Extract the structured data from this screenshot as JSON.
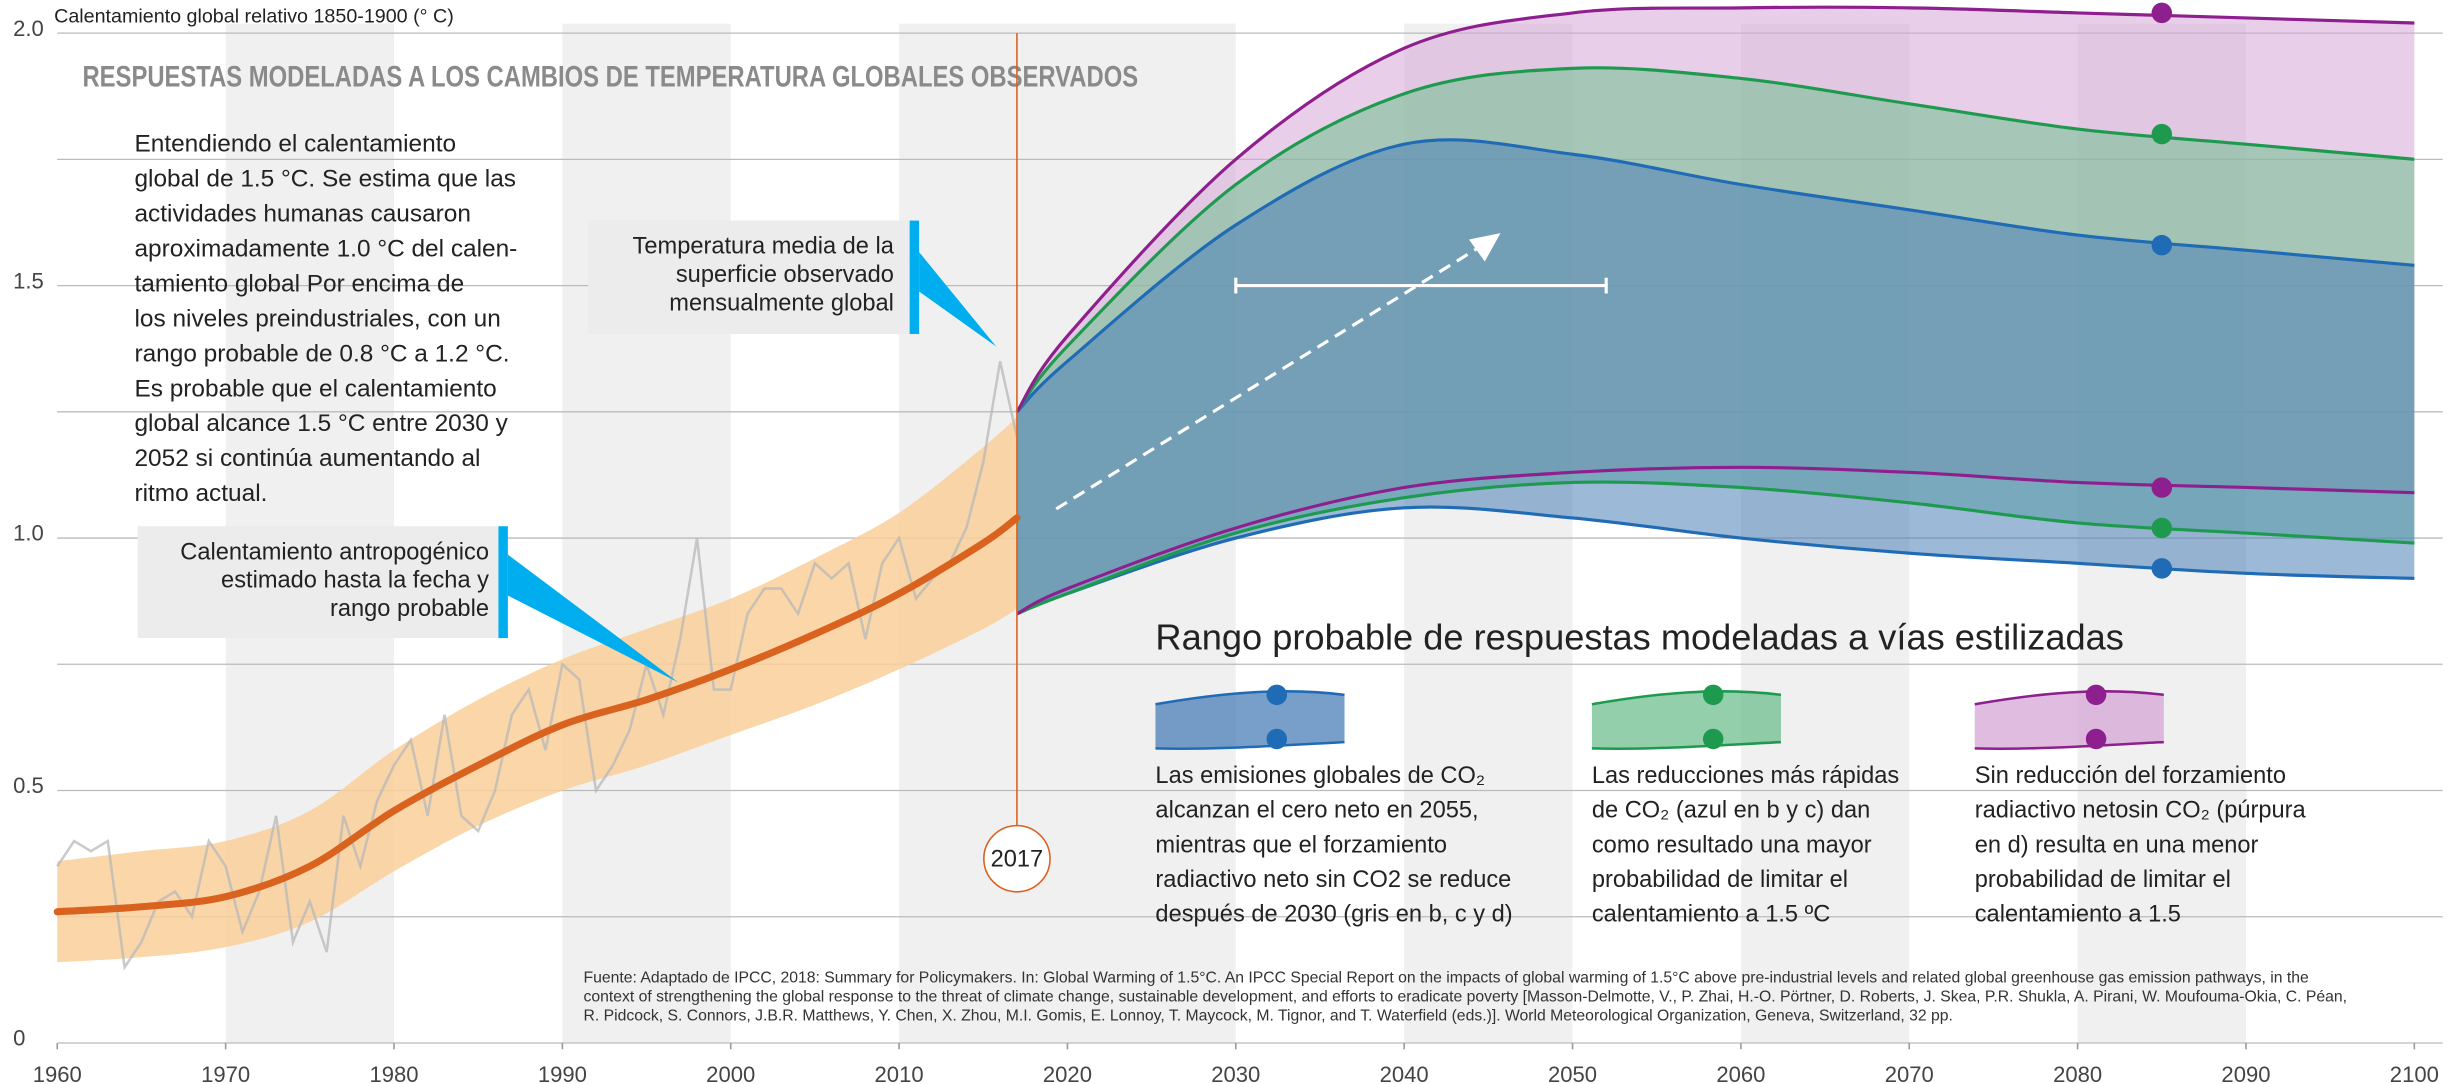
{
  "chart_data": {
    "type": "line",
    "title": "RESPUESTAS MODELADAS A LOS CAMBIOS DE TEMPERATURA GLOBALES OBSERVADOS",
    "y_label": "Calentamiento global relativo 1850-1900 (° C)",
    "xlim": [
      1960,
      2100
    ],
    "xticks": [
      1960,
      1970,
      1980,
      1990,
      2000,
      2010,
      2020,
      2030,
      2040,
      2050,
      2060,
      2070,
      2080,
      2090,
      2100
    ],
    "ylim": [
      0,
      2
    ],
    "yticks": [
      0,
      0.5,
      {
        "value": 1,
        "label": "1.0"
      },
      1.5,
      {
        "value": 2,
        "label": "2.0"
      }
    ],
    "minor_yticks": [
      0.25,
      0.75,
      1.25,
      1.75
    ],
    "grid": true,
    "series": [
      {
        "color": "#b8b8b8",
        "x": [
          1960,
          1961,
          1962,
          1963,
          1964,
          1965,
          1966,
          1967,
          1968,
          1969,
          1970,
          1971,
          1972,
          1973,
          1974,
          1975,
          1976,
          1977,
          1978,
          1979,
          1980,
          1981,
          1982,
          1983,
          1984,
          1985,
          1986,
          1987,
          1988,
          1989,
          1990,
          1991,
          1992,
          1993,
          1994,
          1995,
          1996,
          1997,
          1998,
          1999,
          2000,
          2001,
          2002,
          2003,
          2004,
          2005,
          2006,
          2007,
          2008,
          2009,
          2010,
          2011,
          2012,
          2013,
          2014,
          2015,
          2016,
          2017
        ],
        "values": [
          0.35,
          0.4,
          0.38,
          0.4,
          0.15,
          0.2,
          0.28,
          0.3,
          0.25,
          0.4,
          0.35,
          0.22,
          0.3,
          0.45,
          0.2,
          0.28,
          0.18,
          0.45,
          0.35,
          0.48,
          0.55,
          0.6,
          0.45,
          0.65,
          0.45,
          0.42,
          0.5,
          0.65,
          0.7,
          0.58,
          0.75,
          0.72,
          0.5,
          0.55,
          0.62,
          0.75,
          0.65,
          0.8,
          1.0,
          0.7,
          0.7,
          0.85,
          0.9,
          0.9,
          0.85,
          0.95,
          0.92,
          0.95,
          0.8,
          0.95,
          1.0,
          0.88,
          0.92,
          0.95,
          1.02,
          1.15,
          1.35,
          1.2
        ]
      },
      {
        "color": "#d9621f",
        "band_color": "#f9cf9a",
        "x": [
          1960,
          1965,
          1970,
          1975,
          1980,
          1985,
          1990,
          1995,
          2000,
          2005,
          2010,
          2015,
          2017
        ],
        "values": [
          0.26,
          0.27,
          0.29,
          0.35,
          0.46,
          0.55,
          0.63,
          0.68,
          0.74,
          0.81,
          0.89,
          0.99,
          1.04
        ],
        "lower": [
          0.16,
          0.17,
          0.19,
          0.24,
          0.34,
          0.43,
          0.5,
          0.55,
          0.61,
          0.67,
          0.74,
          0.82,
          0.86
        ],
        "upper": [
          0.36,
          0.38,
          0.4,
          0.46,
          0.58,
          0.68,
          0.76,
          0.82,
          0.88,
          0.96,
          1.05,
          1.18,
          1.24
        ]
      }
    ],
    "scenarios": [
      {
        "color": "#1f6bb5",
        "fill": "#4a7fb8",
        "x": [
          2017,
          2020,
          2030,
          2040,
          2050,
          2060,
          2070,
          2080,
          2090,
          2100
        ],
        "upper": [
          1.25,
          1.35,
          1.62,
          1.78,
          1.76,
          1.7,
          1.65,
          1.6,
          1.57,
          1.54
        ],
        "lower": [
          0.85,
          0.89,
          1.0,
          1.06,
          1.04,
          1.0,
          0.97,
          0.95,
          0.93,
          0.92
        ],
        "marker_x": 2085,
        "marker_values": [
          1.58,
          0.94
        ]
      },
      {
        "color": "#1e9a4f",
        "fill": "#6fbf8e",
        "x": [
          2017,
          2020,
          2030,
          2040,
          2050,
          2060,
          2070,
          2080,
          2090,
          2100
        ],
        "upper": [
          1.25,
          1.38,
          1.7,
          1.88,
          1.93,
          1.91,
          1.86,
          1.81,
          1.78,
          1.75
        ],
        "lower": [
          0.85,
          0.89,
          1.01,
          1.08,
          1.11,
          1.1,
          1.07,
          1.03,
          1.01,
          0.99
        ],
        "marker_x": 2085,
        "marker_values": [
          1.8,
          1.02
        ]
      },
      {
        "color": "#8e1f8e",
        "fill": "#d7a6d7",
        "x": [
          2017,
          2020,
          2030,
          2040,
          2050,
          2060,
          2070,
          2080,
          2090,
          2100
        ],
        "upper": [
          1.25,
          1.4,
          1.75,
          1.97,
          2.04,
          2.05,
          2.05,
          2.04,
          2.03,
          2.02
        ],
        "lower": [
          0.85,
          0.9,
          1.02,
          1.1,
          1.13,
          1.14,
          1.13,
          1.11,
          1.1,
          1.09
        ],
        "marker_x": 2085,
        "marker_values": [
          2.04,
          1.1
        ]
      }
    ],
    "annotations": {
      "text": [
        "Entendiendo el calentamiento",
        "global de 1.5 °C. Se estima que las",
        "actividades humanas causaron",
        "aproximadamente 1.0 °C del calen-",
        "tamiento global  Por encima de",
        "los niveles preindustriales, con un",
        "rango probable de 0.8 °C a 1.2 °C.",
        "Es probable que el calentamiento",
        "global alcance 1.5 °C entre 2030 y",
        "2052 si continúa aumentando al",
        "ritmo actual."
      ],
      "observed_label": [
        "Temperatura media de la",
        "superficie observado",
        "mensualmente global"
      ],
      "anthropogenic_label": [
        "Calentamiento antropogénico",
        "estimado hasta la fecha y",
        "rango probable"
      ]
    },
    "year_marker": 2017,
    "range_bar": {
      "x": [
        2030,
        2052
      ],
      "y": 1.5
    },
    "legend": {
      "title": "Rango probable de respuestas modeladas a vías estilizadas",
      "entries": [
        [
          "Las emisiones globales de CO₂",
          "alcanzan el cero neto en 2055,",
          "mientras que el forzamiento",
          "radiactivo neto sin CO2 se reduce",
          "después de 2030 (gris en b, c y d)"
        ],
        [
          "Las reducciones más rápidas",
          "de CO₂ (azul en b y c) dan",
          "como resultado una mayor",
          "probabilidad de limitar el",
          "calentamiento a 1.5 ºC"
        ],
        [
          "Sin reducción del forzamiento",
          "radiactivo netosin CO₂ (púrpura",
          "en d) resulta en una menor",
          "probabilidad de limitar el",
          "calentamiento a 1.5"
        ]
      ]
    },
    "source": [
      "Fuente:  Adaptado de IPCC, 2018: Summary for Policymakers. In: Global Warming of 1.5°C. An IPCC Special Report on the impacts of global warming of 1.5°C above pre-industrial levels and related global greenhouse gas emission pathways, in the",
      "context of strengthening the global response to the threat of climate change, sustainable development, and efforts to eradicate poverty [Masson-Delmotte, V., P. Zhai, H.-O. Pörtner, D. Roberts, J. Skea, P.R. Shukla, A. Pirani, W. Moufouma-Okia, C. Péan,",
      "R. Pidcock, S. Connors, J.B.R. Matthews, Y. Chen, X. Zhou, M.I. Gomis, E. Lonnoy, T. Maycock, M. Tignor, and T. Waterfield (eds.)]. World Meteorological Organization, Geneva, Switzerland, 32 pp."
    ]
  }
}
